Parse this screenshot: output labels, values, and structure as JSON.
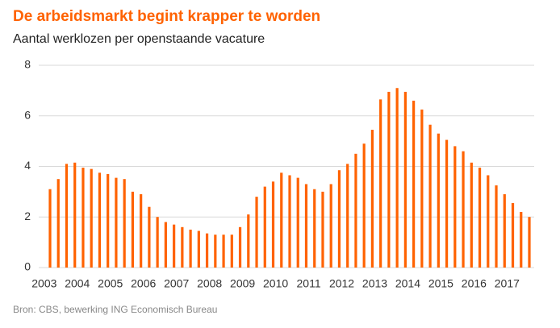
{
  "chart_data": {
    "type": "bar",
    "title": "De arbeidsmarkt begint krapper te worden",
    "subtitle": "Aantal werklozen per openstaande vacature",
    "source": "Bron: CBS, bewerking ING Economisch Bureau",
    "color": "#ff6200",
    "categories": [
      "2003",
      null,
      null,
      null,
      "2004",
      null,
      null,
      null,
      "2005",
      null,
      null,
      null,
      "2006",
      null,
      null,
      null,
      "2007",
      null,
      null,
      null,
      "2008",
      null,
      null,
      null,
      "2009",
      null,
      null,
      null,
      "2010",
      null,
      null,
      null,
      "2011",
      null,
      null,
      null,
      "2012",
      null,
      null,
      null,
      "2013",
      null,
      null,
      null,
      "2014",
      null,
      null,
      null,
      "2015",
      null,
      null,
      null,
      "2016",
      null,
      null,
      null,
      "2017",
      null,
      null
    ],
    "values": [
      3.1,
      3.5,
      4.1,
      4.15,
      3.95,
      3.9,
      3.75,
      3.7,
      3.55,
      3.5,
      3.0,
      2.9,
      2.4,
      2.0,
      1.8,
      1.7,
      1.6,
      1.5,
      1.45,
      1.35,
      1.3,
      1.3,
      1.3,
      1.6,
      2.1,
      2.8,
      3.2,
      3.4,
      3.75,
      3.65,
      3.55,
      3.3,
      3.1,
      3.0,
      3.3,
      3.85,
      4.1,
      4.5,
      4.9,
      5.45,
      6.65,
      6.95,
      7.1,
      6.95,
      6.6,
      6.25,
      5.65,
      5.3,
      5.05,
      4.8,
      4.6,
      4.15,
      3.95,
      3.65,
      3.25,
      2.9,
      2.55,
      2.2,
      2.0
    ],
    "ylim": [
      0,
      8
    ],
    "yticks": [
      0,
      2,
      4,
      6,
      8
    ],
    "grid": true
  }
}
